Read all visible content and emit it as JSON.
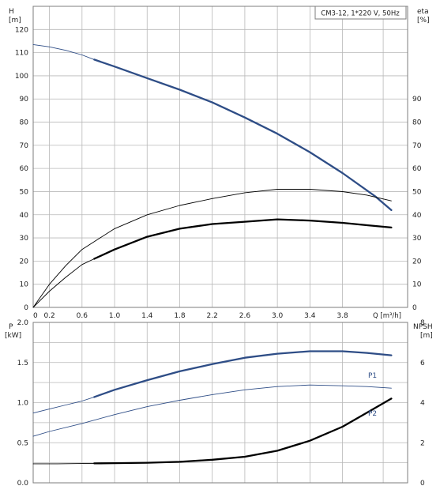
{
  "chart_data": [
    {
      "type": "line",
      "title": "CM3-12, 1*220 V, 50Hz",
      "left_axis": {
        "label_line1": "H",
        "label_line2": "[m]",
        "ylim": [
          0,
          130
        ],
        "ticks": [
          0,
          10,
          20,
          30,
          40,
          50,
          60,
          70,
          80,
          90,
          100,
          110,
          120
        ]
      },
      "right_axis": {
        "label_line1": "eta",
        "label_line2": "[%]",
        "ylim": [
          0,
          130
        ],
        "ticks": [
          0,
          10,
          20,
          30,
          40,
          50,
          60,
          70,
          80,
          90
        ]
      },
      "x_axis": {
        "label": "Q [m³/h]",
        "xlim": [
          0,
          4.6
        ],
        "ticks": [
          "0",
          "0.2",
          "0.6",
          "1.0",
          "1.4",
          "1.8",
          "2.2",
          "2.6",
          "3.0",
          "3.4",
          "3.8"
        ],
        "tick_values": [
          0,
          0.2,
          0.6,
          1.0,
          1.4,
          1.8,
          2.2,
          2.6,
          3.0,
          3.4,
          3.8
        ]
      },
      "grid": true,
      "series": [
        {
          "id": "H-thin",
          "axis": "left",
          "style": "thin-blue",
          "x": [
            0,
            0.2,
            0.4,
            0.6,
            0.75
          ],
          "y": [
            113.5,
            112.5,
            111,
            109,
            107
          ]
        },
        {
          "id": "H",
          "axis": "left",
          "style": "thick-blue",
          "x": [
            0.75,
            1.0,
            1.4,
            1.8,
            2.2,
            2.6,
            3.0,
            3.4,
            3.8,
            4.2,
            4.4
          ],
          "y": [
            107,
            104,
            99,
            94,
            88.5,
            82,
            75,
            67,
            58,
            48,
            42
          ]
        },
        {
          "id": "eta-thin-upper",
          "axis": "right",
          "style": "thin-black",
          "x": [
            0,
            0.2,
            0.4,
            0.6,
            0.8,
            1.0,
            1.4,
            1.8,
            2.2,
            2.6,
            3.0,
            3.4,
            3.8,
            4.1,
            4.4
          ],
          "y": [
            0,
            10,
            18,
            25,
            29.5,
            34,
            40,
            44,
            47,
            49.5,
            51,
            51,
            50,
            48.5,
            46
          ]
        },
        {
          "id": "eta-thin-lower",
          "axis": "right",
          "style": "thin-black",
          "x": [
            0,
            0.2,
            0.4,
            0.6,
            0.75
          ],
          "y": [
            0,
            7,
            13,
            18.5,
            21
          ]
        },
        {
          "id": "eta",
          "axis": "right",
          "style": "thick-black",
          "x": [
            0.75,
            1.0,
            1.4,
            1.8,
            2.2,
            2.6,
            3.0,
            3.4,
            3.8,
            4.1,
            4.4
          ],
          "y": [
            21,
            25,
            30.5,
            34,
            36,
            37,
            38,
            37.5,
            36.5,
            35.5,
            34.5
          ]
        }
      ]
    },
    {
      "type": "line",
      "left_axis": {
        "label_line1": "P",
        "label_line2": "[kW]",
        "ylim": [
          0,
          2.0
        ],
        "ticks": [
          "0.0",
          "0.5",
          "1.0",
          "1.5",
          "2.0"
        ],
        "tick_values": [
          0,
          0.5,
          1.0,
          1.5,
          2.0
        ]
      },
      "right_axis": {
        "label_line1": "NPSH",
        "label_line2": "[m]",
        "ylim": [
          0,
          8
        ],
        "ticks": [
          "0",
          "2",
          "4",
          "6",
          "8"
        ],
        "tick_values": [
          0,
          2,
          4,
          6,
          8
        ]
      },
      "xlim": [
        0,
        4.6
      ],
      "grid": true,
      "series": [
        {
          "id": "P1-thin",
          "axis": "left",
          "style": "thin-blue",
          "x": [
            0,
            0.2,
            0.4,
            0.6,
            0.75
          ],
          "y": [
            0.87,
            0.92,
            0.97,
            1.02,
            1.07
          ]
        },
        {
          "id": "P1",
          "name": "P1",
          "axis": "left",
          "style": "thick-blue",
          "x": [
            0.75,
            1.0,
            1.4,
            1.8,
            2.2,
            2.6,
            3.0,
            3.4,
            3.8,
            4.1,
            4.4
          ],
          "y": [
            1.07,
            1.16,
            1.28,
            1.39,
            1.48,
            1.56,
            1.61,
            1.64,
            1.64,
            1.62,
            1.59
          ]
        },
        {
          "id": "P2",
          "name": "P2",
          "axis": "left",
          "style": "thin-blue",
          "x": [
            0,
            0.2,
            0.6,
            1.0,
            1.4,
            1.8,
            2.2,
            2.6,
            3.0,
            3.4,
            3.8,
            4.1,
            4.4
          ],
          "y": [
            0.58,
            0.64,
            0.74,
            0.85,
            0.95,
            1.03,
            1.1,
            1.16,
            1.2,
            1.22,
            1.21,
            1.2,
            1.18
          ]
        },
        {
          "id": "NPSH-thin",
          "axis": "right",
          "style": "thin-black",
          "x": [
            0,
            0.3,
            0.6,
            0.75
          ],
          "y": [
            0.95,
            0.95,
            0.96,
            0.97
          ]
        },
        {
          "id": "NPSH",
          "axis": "right",
          "style": "thick-black",
          "x": [
            0.75,
            1.0,
            1.4,
            1.8,
            2.2,
            2.6,
            3.0,
            3.4,
            3.8,
            4.1,
            4.4
          ],
          "y": [
            0.97,
            0.98,
            1.0,
            1.05,
            1.15,
            1.3,
            1.6,
            2.1,
            2.8,
            3.5,
            4.2
          ]
        }
      ]
    }
  ],
  "styles": {
    "thin-blue": {
      "color": "#2e4d86",
      "width": 0.9
    },
    "thick-blue": {
      "color": "#2e4d86",
      "width": 2.3
    },
    "thin-black": {
      "color": "#000000",
      "width": 0.9
    },
    "thick-black": {
      "color": "#000000",
      "width": 2.3
    }
  },
  "grid_color": "#b8b8b8"
}
